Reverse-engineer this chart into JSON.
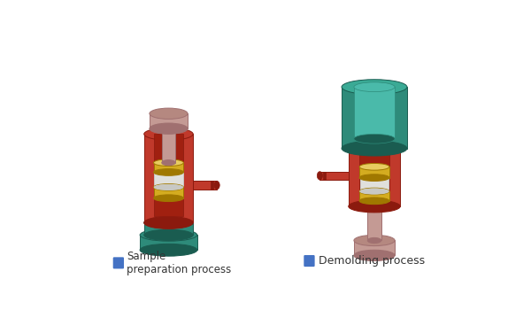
{
  "bg_color": "#ffffff",
  "label1_text": "Sample\npreparation process",
  "label2_text": "Demolding process",
  "colors": {
    "pink": "#C49A94",
    "pink_dark": "#A07070",
    "pink_mid": "#B58880",
    "red": "#C0392B",
    "red_dark": "#8B1A0E",
    "red_mid": "#A02010",
    "teal": "#2E8B7A",
    "teal_dark": "#1A5C50",
    "teal_light": "#3AAA95",
    "teal_inner": "#4ABAAA",
    "gold": "#D4AC20",
    "gold_dark": "#A07800",
    "gold_top": "#E8CC60",
    "white": "#E0E0DC",
    "white_dark": "#C8C8C4",
    "blue_icon": "#4472C4",
    "label_col": "#333333"
  }
}
